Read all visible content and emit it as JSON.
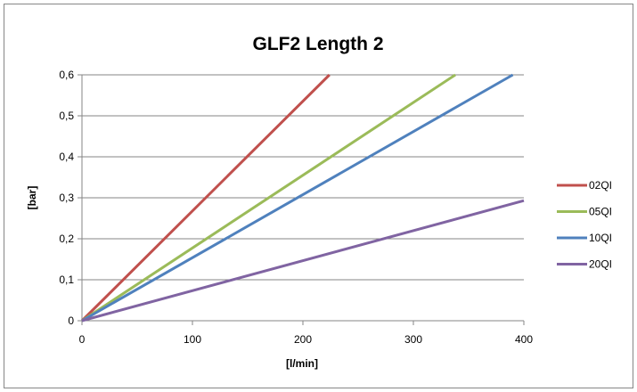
{
  "chart_data": {
    "type": "line",
    "title": "GLF2 Length 2",
    "xlabel": "[l/min]",
    "ylabel": "[bar]",
    "xlim": [
      0,
      400
    ],
    "ylim": [
      0,
      0.6
    ],
    "x_ticks": [
      0,
      100,
      200,
      300,
      400
    ],
    "x_tick_labels": [
      "0",
      "100",
      "200",
      "300",
      "400"
    ],
    "y_ticks": [
      0,
      0.1,
      0.2,
      0.3,
      0.4,
      0.5,
      0.6
    ],
    "y_tick_labels": [
      "0",
      "0,1",
      "0,2",
      "0,3",
      "0,4",
      "0,5",
      "0,6"
    ],
    "grid": "horizontal",
    "legend_position": "right",
    "series": [
      {
        "name": "02QI",
        "color": "#C0504D",
        "x": [
          0,
          224
        ],
        "y": [
          0,
          0.6
        ]
      },
      {
        "name": "05QI",
        "color": "#9BBB59",
        "x": [
          0,
          338
        ],
        "y": [
          0,
          0.6
        ]
      },
      {
        "name": "10QI",
        "color": "#4F81BD",
        "x": [
          0,
          390
        ],
        "y": [
          0,
          0.6
        ]
      },
      {
        "name": "20QI",
        "color": "#8064A2",
        "x": [
          0,
          400
        ],
        "y": [
          0,
          0.293
        ]
      }
    ]
  }
}
